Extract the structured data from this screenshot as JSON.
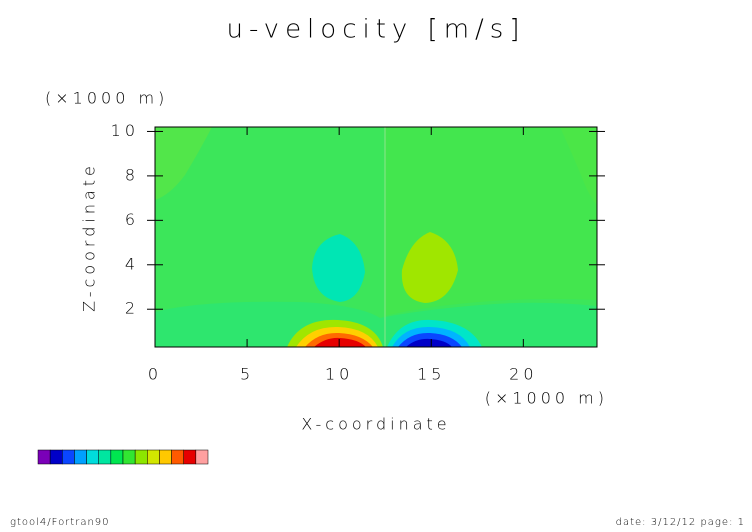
{
  "chart_data": {
    "type": "contour",
    "title": "u-velocity [m/s]",
    "x_label": "X-coordinate",
    "y_label": "Z-coordinate",
    "x_unit": "(×1000 m)",
    "y_unit": "(×1000 m)",
    "xlim": [
      0,
      24
    ],
    "ylim": [
      0.3,
      10.2
    ],
    "xticks": [
      0,
      5,
      10,
      15,
      20
    ],
    "yticks": [
      2,
      4,
      6,
      8,
      10
    ],
    "colorbar": [
      "#7a00b8",
      "#0000c8",
      "#0a46ff",
      "#00a0ff",
      "#00dcdc",
      "#00e6a0",
      "#00e650",
      "#32e632",
      "#8ce600",
      "#d2e600",
      "#ffc800",
      "#ff5a00",
      "#e60000",
      "#ffa0a0"
    ],
    "footer_left": "gtool4/Fortran90",
    "footer_right": "date: 3/12/12 page: 1"
  }
}
